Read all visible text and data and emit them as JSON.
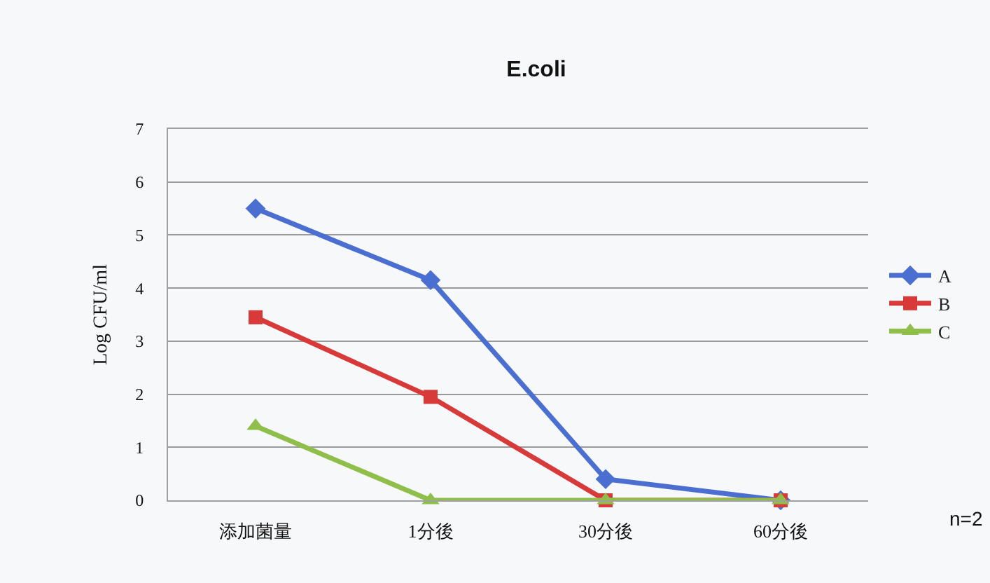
{
  "chart_data": {
    "type": "line",
    "title": "E.coli",
    "ylabel": "Log CFU/ml",
    "categories": [
      "添加菌量",
      "1分後",
      "30分後",
      "60分後"
    ],
    "series": [
      {
        "name": "A",
        "color": "#4a6fd0",
        "marker": "diamond",
        "values": [
          5.5,
          4.15,
          0.4,
          0
        ]
      },
      {
        "name": "B",
        "color": "#d83a3a",
        "marker": "square",
        "values": [
          3.45,
          1.95,
          0,
          0
        ]
      },
      {
        "name": "C",
        "color": "#8fbf4a",
        "marker": "triangle",
        "values": [
          1.4,
          0,
          0,
          0
        ]
      }
    ],
    "ylim": [
      0,
      7
    ],
    "yticks": [
      0,
      1,
      2,
      3,
      4,
      5,
      6,
      7
    ],
    "grid": "y",
    "legend": "right",
    "line_style": "solid",
    "annotations": [
      "n=2"
    ]
  }
}
